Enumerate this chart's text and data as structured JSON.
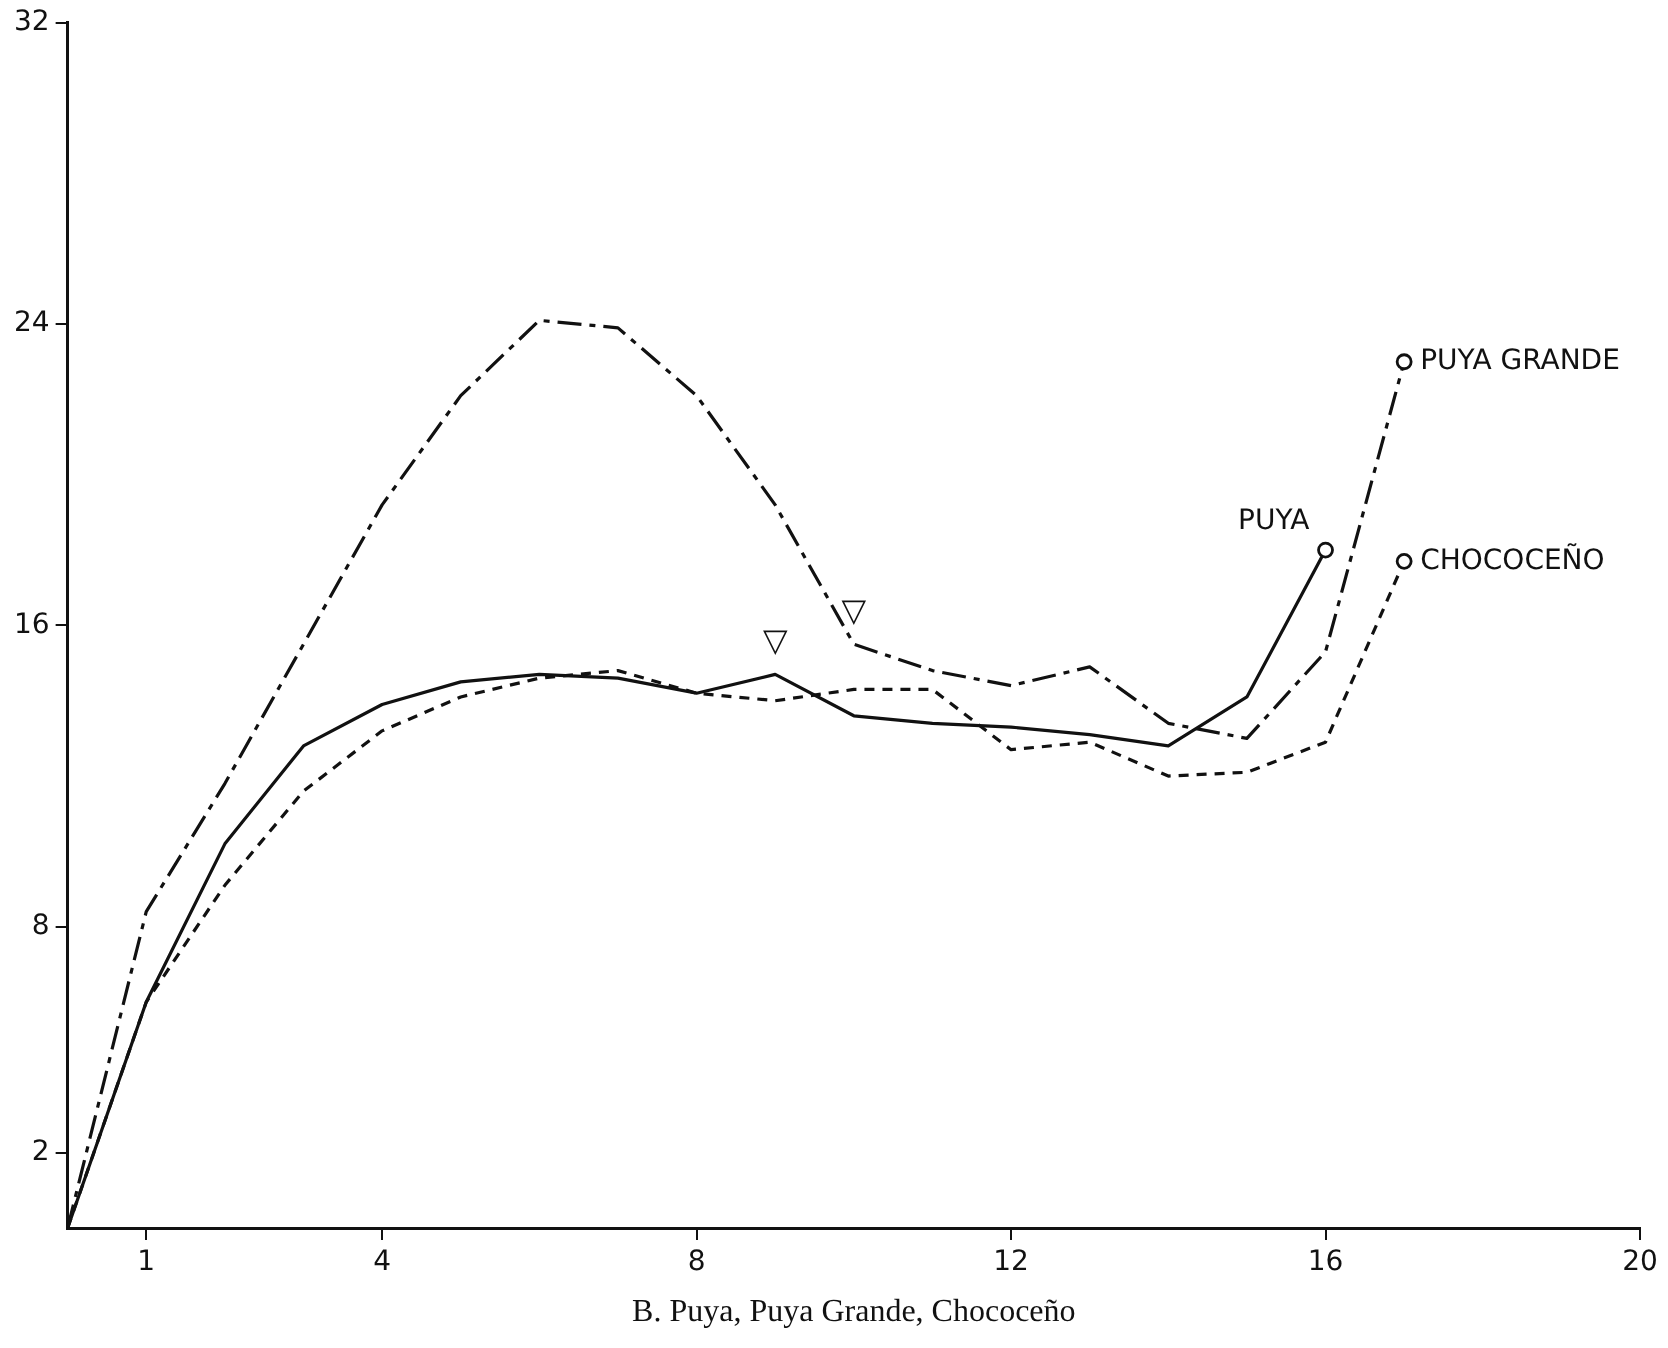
{
  "chart_data": {
    "type": "line",
    "xlabel": "B. Puya, Puya Grande, Chococeño",
    "xlim": [
      0,
      20
    ],
    "xticks": [
      1,
      4,
      8,
      12,
      16,
      20
    ],
    "ylim": [
      0,
      32
    ],
    "yticks": [
      2,
      8,
      16,
      24,
      32
    ],
    "grid": false,
    "legend": false,
    "marker": "none",
    "series": [
      {
        "name": "PUYA",
        "color": "#111111",
        "line_style": "solid",
        "x": [
          0,
          1,
          2,
          3,
          4,
          5,
          6,
          7,
          8,
          9,
          10,
          11,
          12,
          13,
          14,
          15,
          16
        ],
        "values": [
          0,
          6.0,
          10.2,
          12.8,
          13.9,
          14.5,
          14.7,
          14.6,
          14.2,
          14.7,
          13.6,
          13.4,
          13.3,
          13.1,
          12.8,
          14.1,
          18.0
        ]
      },
      {
        "name": "PUYA GRANDE",
        "color": "#111111",
        "line_style": "dashed",
        "x": [
          0,
          1,
          2,
          3,
          4,
          5,
          6,
          7,
          8,
          9,
          10,
          11,
          12,
          13,
          14,
          15,
          16,
          17
        ],
        "values": [
          0,
          8.4,
          11.8,
          15.5,
          19.2,
          22.1,
          24.1,
          23.9,
          22.1,
          19.2,
          15.5,
          14.8,
          14.4,
          14.9,
          13.4,
          13.0,
          15.3,
          23.0
        ]
      },
      {
        "name": "CHOCOCEÑO",
        "color": "#111111",
        "line_style": "dotted",
        "x": [
          0,
          1,
          2,
          3,
          4,
          5,
          6,
          7,
          8,
          9,
          10,
          11,
          12,
          13,
          14,
          15,
          16,
          17
        ],
        "values": [
          0,
          6.0,
          9.1,
          11.6,
          13.2,
          14.1,
          14.6,
          14.8,
          14.2,
          14.0,
          14.3,
          14.3,
          12.7,
          12.9,
          12.0,
          12.1,
          12.9,
          17.7
        ]
      }
    ],
    "annotations": [
      {
        "text": "▽",
        "x": 9,
        "y": 14.7
      },
      {
        "text": "▽",
        "x": 10,
        "y": 15.5
      }
    ]
  }
}
